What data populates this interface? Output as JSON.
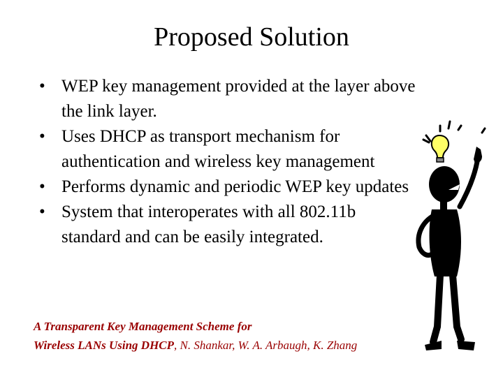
{
  "slide": {
    "title": "Proposed Solution",
    "bullet_symbol": "•",
    "bullets": [
      "WEP key management provided at the layer above the link layer.",
      "Uses DHCP as transport mechanism for authentication and wireless key management",
      "Performs dynamic and periodic WEP key updates",
      "System that interoperates with all 802.11b standard and can be easily integrated."
    ],
    "reference": {
      "line1": "A Transparent Key Management Scheme for",
      "line2_title": "Wireless LANs Using DHCP",
      "line2_authors": ", N. Shankar, W. A. Arbaugh, K. Zhang"
    }
  },
  "colors": {
    "background": "#ffffff",
    "text": "#000000",
    "reference": "#990000",
    "bulb": "#ffff66"
  },
  "icons": {
    "clipart": "idea-person-icon"
  }
}
